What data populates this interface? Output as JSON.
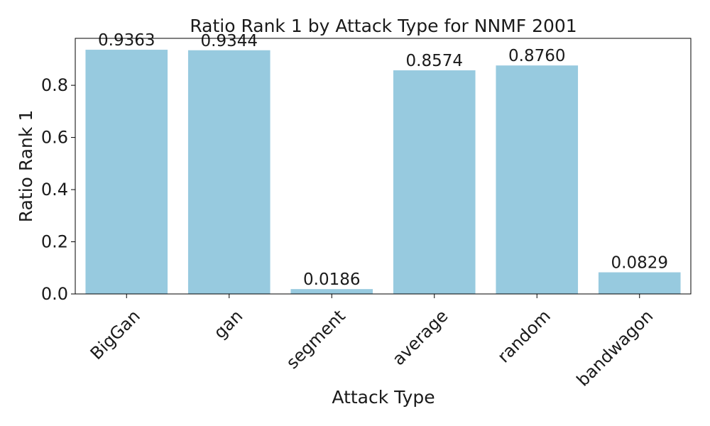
{
  "chart_data": {
    "type": "bar",
    "title": "Ratio Rank 1 by Attack Type for NNMF 2001",
    "xlabel": "Attack Type",
    "ylabel": "Ratio Rank 1",
    "categories": [
      "BigGan",
      "gan",
      "segment",
      "average",
      "random",
      "bandwagon"
    ],
    "values": [
      0.9363,
      0.9344,
      0.0186,
      0.8574,
      0.876,
      0.0829
    ],
    "data_labels": [
      "0.9363",
      "0.9344",
      "0.0186",
      "0.8574",
      "0.8760",
      "0.0829"
    ],
    "ylim": [
      0,
      0.98
    ],
    "yticks": [
      0.0,
      0.2,
      0.4,
      0.6,
      0.8
    ],
    "ytick_labels": [
      "0.0",
      "0.2",
      "0.4",
      "0.6",
      "0.8"
    ],
    "bar_color": "#97cadf",
    "grid": false,
    "legend": "none"
  }
}
